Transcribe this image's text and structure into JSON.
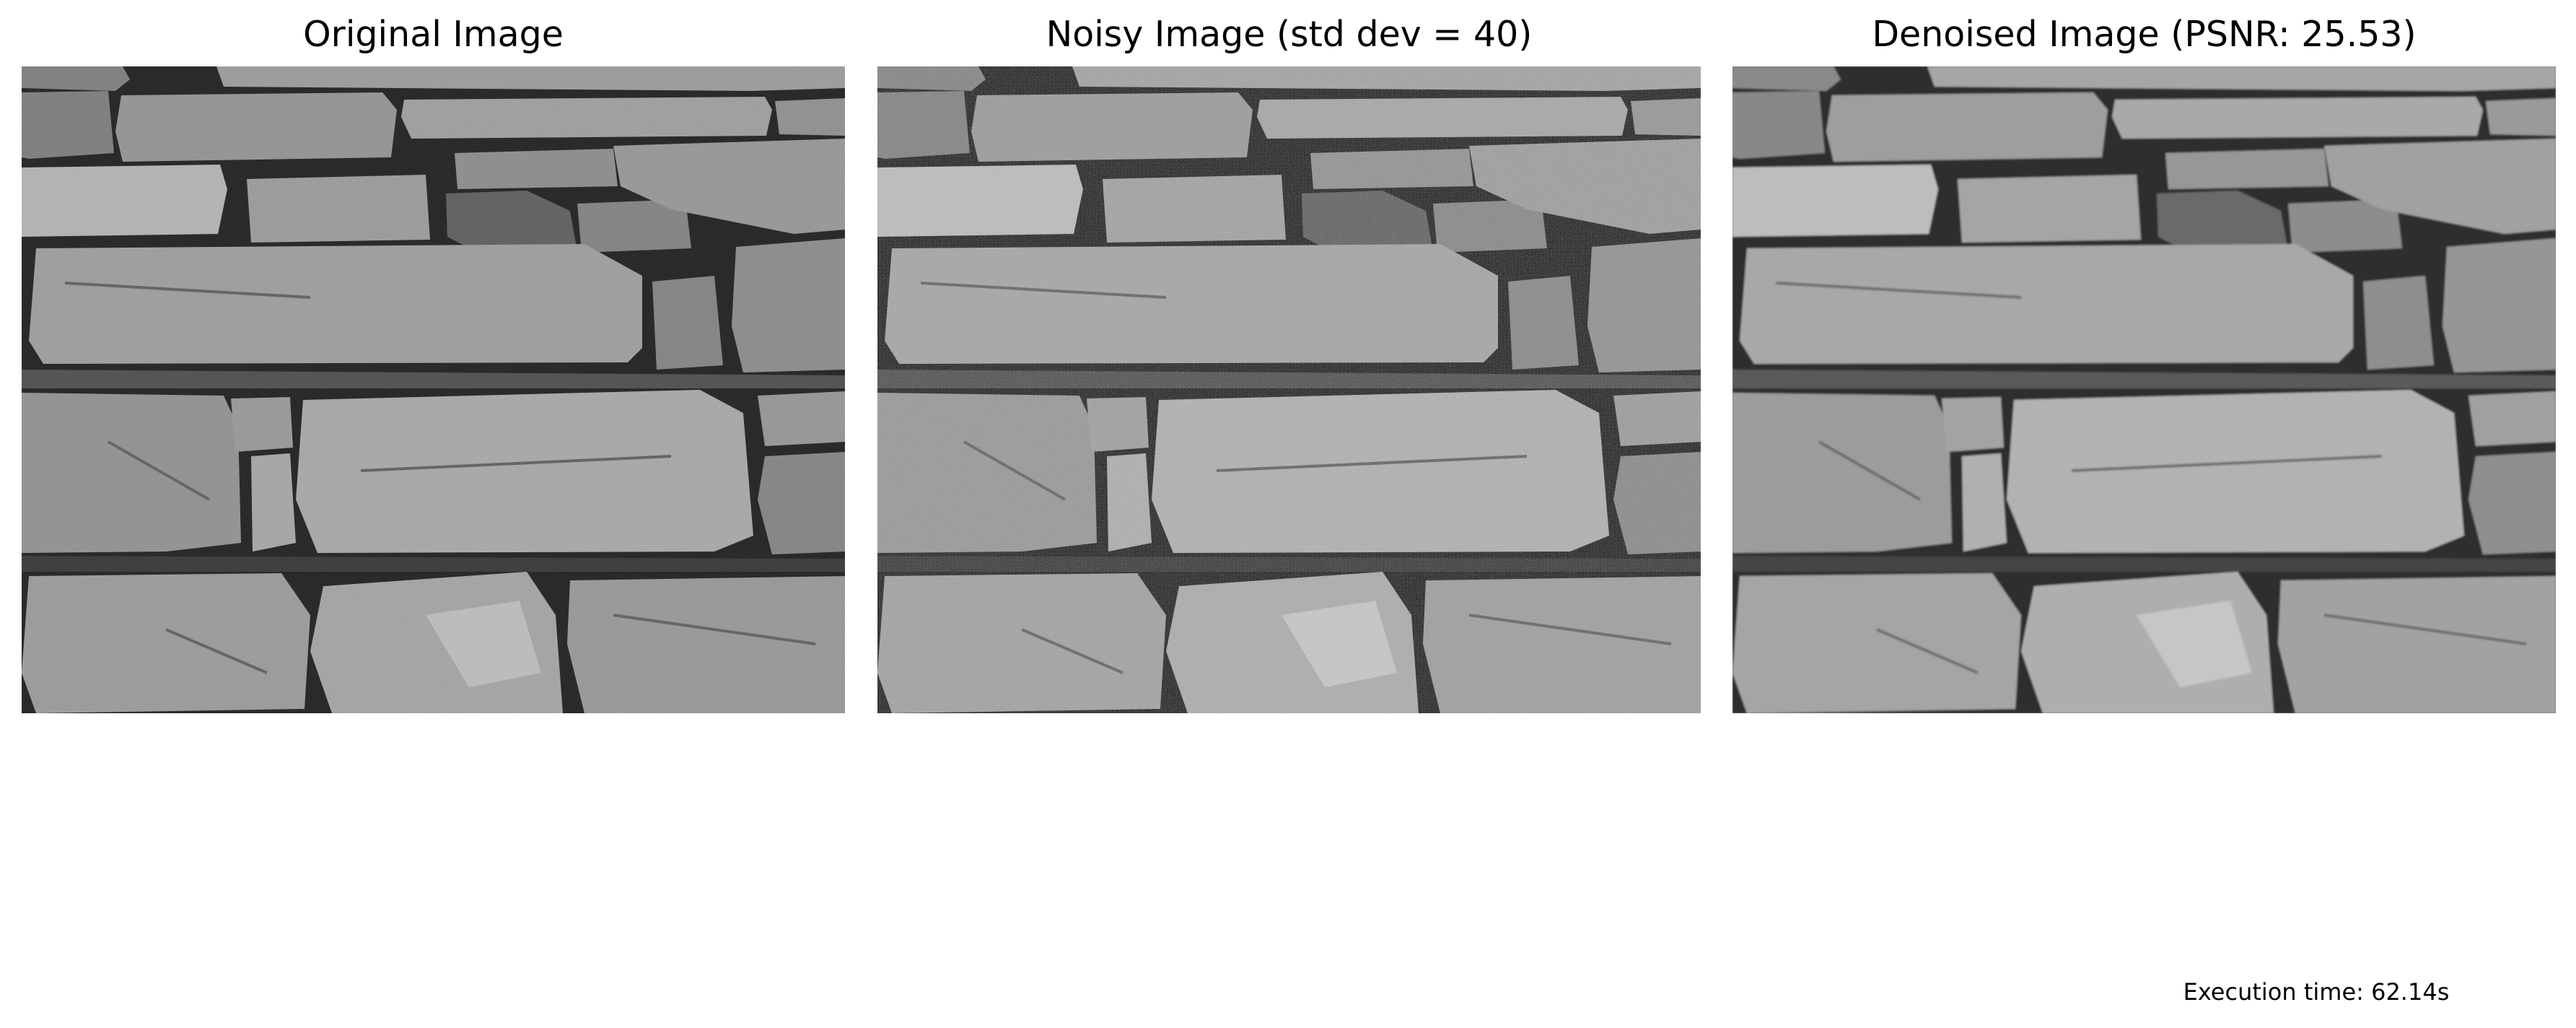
{
  "panels": [
    {
      "title": "Original Image"
    },
    {
      "title": "Noisy Image (std dev = 40)"
    },
    {
      "title": "Denoised Image (PSNR: 25.53)"
    }
  ],
  "footer": {
    "execution_time": "Execution time: 62.14s"
  }
}
